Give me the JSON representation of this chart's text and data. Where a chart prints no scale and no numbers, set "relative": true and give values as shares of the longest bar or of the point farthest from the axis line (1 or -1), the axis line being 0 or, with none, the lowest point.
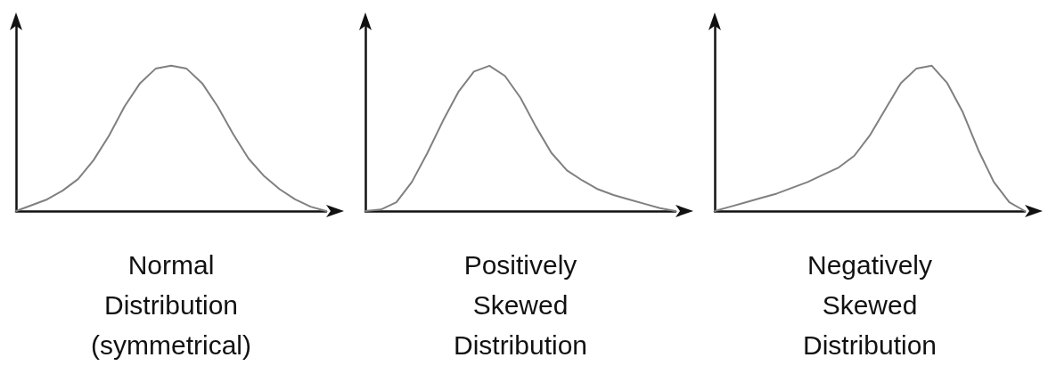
{
  "chart_data": [
    {
      "type": "line",
      "xlabel": "Normal\nDistribution\n(symmetrical)",
      "relative": true,
      "marker": "none",
      "categories": [
        null,
        null,
        null,
        null,
        null,
        null,
        null,
        null,
        null,
        null,
        null,
        null,
        null,
        null,
        null,
        null,
        null,
        null,
        null,
        null,
        null
      ],
      "series": [
        {
          "color": "#808080",
          "values": [
            0,
            0.04,
            0.08,
            0.14,
            0.22,
            0.35,
            0.52,
            0.72,
            0.88,
            0.98,
            1.0,
            0.98,
            0.88,
            0.72,
            0.53,
            0.36,
            0.24,
            0.15,
            0.08,
            0.03,
            0
          ]
        }
      ]
    },
    {
      "type": "line",
      "xlabel": "Positively\nSkewed\nDistribution",
      "relative": true,
      "marker": "none",
      "categories": [
        null,
        null,
        null,
        null,
        null,
        null,
        null,
        null,
        null,
        null,
        null,
        null,
        null,
        null,
        null,
        null,
        null,
        null,
        null,
        null,
        null
      ],
      "series": [
        {
          "color": "#808080",
          "values": [
            0,
            0.01,
            0.06,
            0.2,
            0.4,
            0.62,
            0.82,
            0.96,
            1.0,
            0.93,
            0.78,
            0.58,
            0.4,
            0.28,
            0.21,
            0.15,
            0.11,
            0.08,
            0.05,
            0.02,
            0
          ]
        }
      ]
    },
    {
      "type": "line",
      "xlabel": "Negatively\nSkewed\nDistribution",
      "relative": true,
      "marker": "none",
      "categories": [
        null,
        null,
        null,
        null,
        null,
        null,
        null,
        null,
        null,
        null,
        null,
        null,
        null,
        null,
        null,
        null,
        null,
        null,
        null,
        null,
        null
      ],
      "series": [
        {
          "color": "#808080",
          "values": [
            0,
            0.03,
            0.06,
            0.09,
            0.12,
            0.16,
            0.2,
            0.25,
            0.3,
            0.38,
            0.52,
            0.7,
            0.88,
            0.98,
            1.0,
            0.88,
            0.68,
            0.42,
            0.2,
            0.06,
            0
          ]
        }
      ]
    }
  ]
}
